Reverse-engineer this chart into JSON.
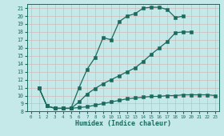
{
  "xlabel": "Humidex (Indice chaleur)",
  "bg_color": "#c5e8e8",
  "grid_color": "#b0d4d4",
  "line_color": "#1a6b5e",
  "xlim": [
    -0.5,
    23.5
  ],
  "ylim": [
    8,
    21.5
  ],
  "xticks": [
    0,
    1,
    2,
    3,
    4,
    5,
    6,
    7,
    8,
    9,
    10,
    11,
    12,
    13,
    14,
    15,
    16,
    17,
    18,
    19,
    20,
    21,
    22,
    23
  ],
  "yticks": [
    8,
    9,
    10,
    11,
    12,
    13,
    14,
    15,
    16,
    17,
    18,
    19,
    20,
    21
  ],
  "line1_x": [
    1,
    2,
    3,
    4,
    5,
    6,
    7,
    8,
    9,
    10,
    11,
    12,
    13,
    14,
    15,
    16,
    17,
    18,
    19
  ],
  "line1_y": [
    11.0,
    8.7,
    8.4,
    8.4,
    8.4,
    11.0,
    13.3,
    14.8,
    17.3,
    17.0,
    19.3,
    20.0,
    20.3,
    21.0,
    21.1,
    21.1,
    20.8,
    19.8,
    20.0
  ],
  "line2_x": [
    1,
    2,
    3,
    4,
    5,
    6,
    7,
    8,
    9,
    10,
    11,
    12,
    13,
    14,
    15,
    16,
    17,
    18,
    19,
    20
  ],
  "line2_y": [
    11.0,
    8.7,
    8.4,
    8.4,
    8.4,
    9.2,
    10.2,
    10.9,
    11.5,
    12.0,
    12.5,
    13.0,
    13.5,
    14.3,
    15.2,
    16.0,
    16.8,
    17.9,
    18.0,
    18.0
  ],
  "line3_x": [
    1,
    2,
    3,
    4,
    5,
    6,
    7,
    8,
    9,
    10,
    11,
    12,
    13,
    14,
    15,
    16,
    17,
    18,
    19,
    20,
    21,
    22,
    23
  ],
  "line3_y": [
    11.0,
    8.7,
    8.4,
    8.4,
    8.4,
    8.5,
    8.6,
    8.8,
    9.0,
    9.2,
    9.4,
    9.6,
    9.7,
    9.8,
    9.9,
    9.9,
    10.0,
    10.0,
    10.1,
    10.1,
    10.1,
    10.1,
    10.0
  ]
}
